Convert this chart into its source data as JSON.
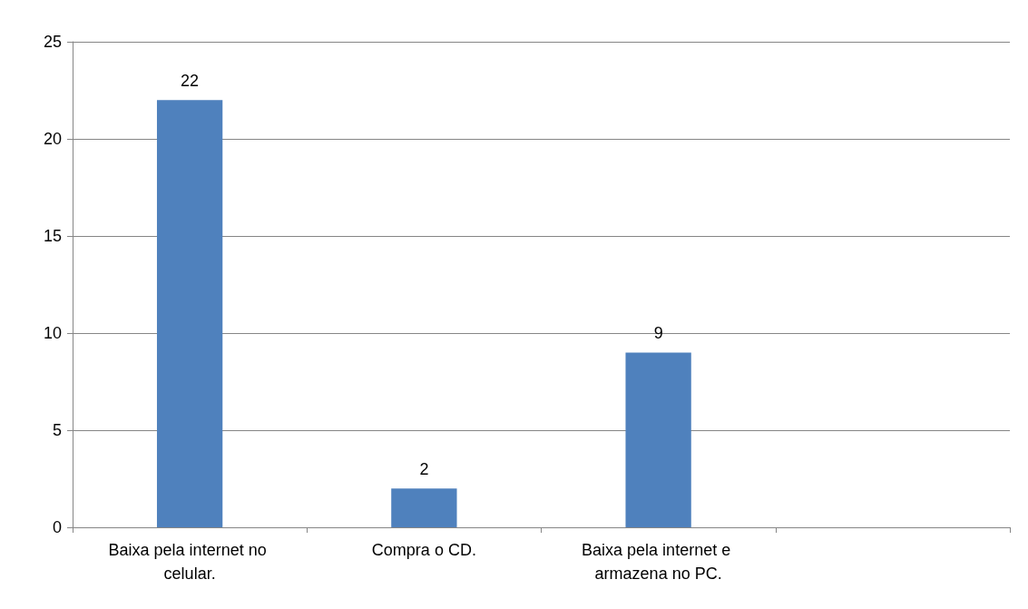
{
  "chart_data": {
    "type": "bar",
    "categories": [
      "Baixa pela internet no celular.",
      "Compra o CD.",
      "Baixa pela internet e armazena no PC.",
      null
    ],
    "values": [
      22,
      2,
      9,
      null
    ],
    "color": "#4f81bd",
    "ylim": [
      0,
      25
    ],
    "yticks": [
      0,
      5,
      10,
      15,
      20,
      25
    ],
    "grid": "y",
    "data_labels": true
  }
}
